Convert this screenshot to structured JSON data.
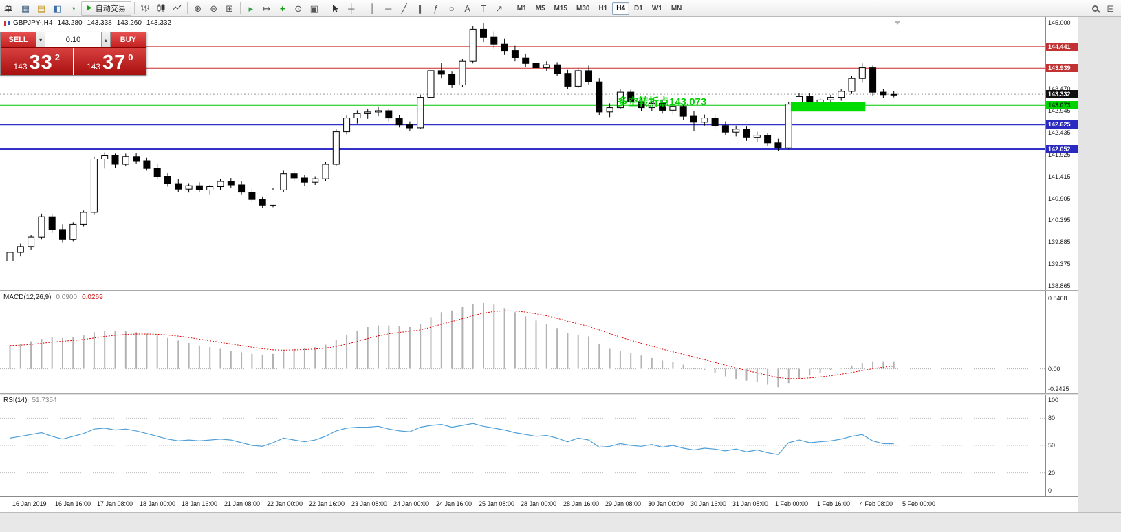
{
  "colors": {
    "accent_red_line": "#cc2a2a",
    "blue_line": "#3232c8",
    "green_line": "#00c800",
    "zone_green": "#00dc00",
    "annotation_green": "#00d000",
    "macd_bar": "#b2b2b2",
    "macd_signal": "#e00000",
    "rsi_line": "#4f9fd8",
    "trade_red": "#c21818",
    "current_label_bg": "#111111"
  },
  "toolbar": {
    "menu_text": "单",
    "auto_trading_label": "自动交易",
    "active_timeframe": "H4",
    "timeframes": [
      "M1",
      "M5",
      "M15",
      "M30",
      "H1",
      "H4",
      "D1",
      "W1",
      "MN"
    ],
    "icon_glyphs": {
      "play": "▶",
      "new_chart": "▦",
      "profiles": "▤",
      "market_watch": "◧",
      "navigator": "◔",
      "zoom_in": "⊕",
      "zoom_out": "⊖",
      "tile_windows": "⊞",
      "auto_scroll": "▸",
      "chart_shift": "↦",
      "indicators": "+",
      "periods": "⊙",
      "templates": "▣",
      "crosshair": "┼",
      "vertical_line": "│",
      "horizontal_line": "─",
      "trendline": "╱",
      "channel": "∥",
      "fibonacci": "ƒ",
      "shapes": "○",
      "text": "A",
      "label": "T",
      "arrows": "↗",
      "layout": "⊟",
      "lot_down": "▾",
      "lot_up": "▴"
    }
  },
  "chart_header": {
    "symbol": "GBPJPY-,H4",
    "open": "143.280",
    "high": "143.338",
    "low": "143.260",
    "close": "143.332"
  },
  "trade_panel": {
    "sell_label": "SELL",
    "buy_label": "BUY",
    "lot": "0.10",
    "sell_price_main": "143",
    "sell_price_pips": "33",
    "sell_price_frac": "2",
    "buy_price_main": "143",
    "buy_price_pips": "37",
    "buy_price_frac": "0"
  },
  "annotation": {
    "text": "多空转折点143.073"
  },
  "price_axis_ticks": [
    "145.000",
    "143.470",
    "142.945",
    "142.435",
    "141.925",
    "141.415",
    "140.905",
    "140.395",
    "139.885",
    "139.375",
    "138.865"
  ],
  "price_lines": [
    {
      "label": "144.441",
      "price": 144.441,
      "line_color": "#cc2a2a",
      "line_width": 1,
      "label_bg": "#c23232",
      "label_fg": "#ffffff",
      "current": false
    },
    {
      "label": "143.939",
      "price": 143.939,
      "line_color": "#cc2a2a",
      "line_width": 1,
      "label_bg": "#c23232",
      "label_fg": "#ffffff",
      "current": false
    },
    {
      "label": "143.332",
      "price": 143.332,
      "line_color": null,
      "line_width": 1,
      "label_bg": "#111111",
      "label_fg": "#ffffff",
      "current": true
    },
    {
      "label": "143.073",
      "price": 143.073,
      "line_color": "#00c800",
      "line_width": 1,
      "label_bg": "#00d300",
      "label_fg": "#00320a",
      "current": false
    },
    {
      "label": "142.625",
      "price": 142.625,
      "line_color": "#3232c8",
      "line_width": 2,
      "label_bg": "#2a2ac0",
      "label_fg": "#ffffff",
      "current": false
    },
    {
      "label": "142.052",
      "price": 142.052,
      "line_color": "#3232c8",
      "line_width": 2,
      "label_bg": "#2a2ac0",
      "label_fg": "#ffffff",
      "current": false
    }
  ],
  "green_zone": {
    "start_index": 74.5,
    "end_index": 81,
    "price_top": 143.15,
    "price_bottom": 142.93
  },
  "chart_data": [
    {
      "type": "candlestick",
      "name": "GBPJPY- H4",
      "ylim": [
        138.865,
        145.0
      ],
      "x_tick_labels": [
        "16 Jan 2019",
        "16 Jan 16:00",
        "17 Jan 08:00",
        "18 Jan 00:00",
        "18 Jan 16:00",
        "21 Jan 08:00",
        "22 Jan 00:00",
        "22 Jan 16:00",
        "23 Jan 08:00",
        "24 Jan 00:00",
        "24 Jan 16:00",
        "25 Jan 08:00",
        "28 Jan 00:00",
        "28 Jan 16:00",
        "29 Jan 08:00",
        "30 Jan 00:00",
        "30 Jan 16:00",
        "31 Jan 08:00",
        "1 Feb 00:00",
        "1 Feb 16:00",
        "4 Feb 08:00",
        "5 Feb 00:00"
      ],
      "ohlc": [
        [
          139.45,
          139.75,
          139.3,
          139.65
        ],
        [
          139.65,
          139.85,
          139.55,
          139.78
        ],
        [
          139.78,
          140.05,
          139.7,
          140.0
        ],
        [
          140.0,
          140.55,
          139.95,
          140.48
        ],
        [
          140.48,
          140.55,
          140.1,
          140.18
        ],
        [
          140.18,
          140.3,
          139.88,
          139.95
        ],
        [
          139.95,
          140.35,
          139.9,
          140.3
        ],
        [
          140.3,
          140.62,
          140.25,
          140.58
        ],
        [
          140.58,
          141.88,
          140.52,
          141.82
        ],
        [
          141.82,
          141.98,
          141.6,
          141.9
        ],
        [
          141.9,
          141.95,
          141.62,
          141.7
        ],
        [
          141.7,
          141.95,
          141.65,
          141.88
        ],
        [
          141.88,
          141.96,
          141.7,
          141.78
        ],
        [
          141.78,
          141.85,
          141.55,
          141.6
        ],
        [
          141.6,
          141.7,
          141.35,
          141.42
        ],
        [
          141.42,
          141.5,
          141.18,
          141.25
        ],
        [
          141.25,
          141.35,
          141.05,
          141.12
        ],
        [
          141.12,
          141.26,
          141.04,
          141.2
        ],
        [
          141.2,
          141.28,
          141.05,
          141.1
        ],
        [
          141.1,
          141.22,
          141.0,
          141.18
        ],
        [
          141.18,
          141.35,
          141.1,
          141.3
        ],
        [
          141.3,
          141.38,
          141.15,
          141.22
        ],
        [
          141.22,
          141.3,
          141.0,
          141.05
        ],
        [
          141.05,
          141.12,
          140.82,
          140.88
        ],
        [
          140.88,
          140.95,
          140.68,
          140.75
        ],
        [
          140.75,
          141.15,
          140.7,
          141.1
        ],
        [
          141.1,
          141.55,
          141.05,
          141.48
        ],
        [
          141.48,
          141.55,
          141.3,
          141.38
        ],
        [
          141.38,
          141.45,
          141.2,
          141.28
        ],
        [
          141.28,
          141.42,
          141.22,
          141.36
        ],
        [
          141.36,
          141.75,
          141.3,
          141.7
        ],
        [
          141.7,
          142.52,
          141.65,
          142.46
        ],
        [
          142.46,
          142.85,
          142.4,
          142.78
        ],
        [
          142.78,
          142.96,
          142.65,
          142.88
        ],
        [
          142.88,
          143.0,
          142.76,
          142.92
        ],
        [
          142.92,
          143.05,
          142.82,
          142.95
        ],
        [
          142.95,
          143.0,
          142.7,
          142.78
        ],
        [
          142.78,
          142.85,
          142.56,
          142.62
        ],
        [
          142.62,
          142.7,
          142.48,
          142.55
        ],
        [
          142.55,
          143.32,
          142.52,
          143.26
        ],
        [
          143.26,
          143.96,
          143.2,
          143.88
        ],
        [
          143.88,
          144.06,
          143.7,
          143.8
        ],
        [
          143.8,
          143.86,
          143.48,
          143.55
        ],
        [
          143.55,
          144.15,
          143.5,
          144.1
        ],
        [
          144.1,
          144.92,
          144.05,
          144.85
        ],
        [
          144.85,
          145.0,
          144.55,
          144.66
        ],
        [
          144.66,
          144.8,
          144.4,
          144.5
        ],
        [
          144.5,
          144.62,
          144.25,
          144.35
        ],
        [
          144.35,
          144.46,
          144.1,
          144.18
        ],
        [
          144.18,
          144.28,
          143.96,
          144.05
        ],
        [
          144.05,
          144.16,
          143.86,
          143.95
        ],
        [
          143.95,
          144.1,
          143.88,
          144.02
        ],
        [
          144.02,
          144.08,
          143.76,
          143.82
        ],
        [
          143.82,
          143.9,
          143.45,
          143.52
        ],
        [
          143.52,
          143.95,
          143.48,
          143.88
        ],
        [
          143.88,
          144.0,
          143.56,
          143.62
        ],
        [
          143.62,
          143.7,
          142.85,
          142.92
        ],
        [
          142.92,
          143.12,
          142.8,
          143.02
        ],
        [
          143.02,
          143.46,
          142.98,
          143.38
        ],
        [
          143.38,
          143.44,
          143.1,
          143.16
        ],
        [
          143.16,
          143.26,
          142.95,
          143.02
        ],
        [
          143.02,
          143.18,
          142.94,
          143.12
        ],
        [
          143.12,
          143.2,
          142.88,
          142.96
        ],
        [
          142.96,
          143.1,
          142.86,
          143.05
        ],
        [
          143.05,
          143.1,
          142.74,
          142.82
        ],
        [
          142.82,
          142.95,
          142.48,
          142.68
        ],
        [
          142.68,
          142.86,
          142.6,
          142.78
        ],
        [
          142.78,
          142.85,
          142.54,
          142.6
        ],
        [
          142.6,
          142.7,
          142.38,
          142.45
        ],
        [
          142.45,
          142.6,
          142.35,
          142.52
        ],
        [
          142.52,
          142.58,
          142.25,
          142.32
        ],
        [
          142.32,
          142.46,
          142.22,
          142.38
        ],
        [
          142.38,
          142.42,
          142.12,
          142.2
        ],
        [
          142.2,
          142.3,
          142.02,
          142.08
        ],
        [
          142.08,
          143.16,
          142.05,
          143.1
        ],
        [
          143.1,
          143.36,
          143.0,
          143.28
        ],
        [
          143.28,
          143.35,
          143.04,
          143.12
        ],
        [
          143.12,
          143.26,
          143.02,
          143.2
        ],
        [
          143.2,
          143.32,
          143.08,
          143.26
        ],
        [
          143.26,
          143.46,
          143.18,
          143.4
        ],
        [
          143.4,
          143.76,
          143.34,
          143.7
        ],
        [
          143.7,
          144.05,
          143.6,
          143.95
        ],
        [
          143.95,
          144.0,
          143.3,
          143.38
        ],
        [
          143.38,
          143.46,
          143.25,
          143.32
        ],
        [
          143.32,
          143.4,
          143.26,
          143.33
        ]
      ]
    },
    {
      "type": "bar",
      "name": "MACD(12,26,9)",
      "value_main": "0.0900",
      "value_signal": "0.0269",
      "signal_period": 9,
      "ylim": [
        -0.2425,
        0.8468
      ],
      "axis_ticks": [
        "0.8468",
        "0.00",
        "-0.2425"
      ],
      "values": [
        0.28,
        0.3,
        0.33,
        0.36,
        0.38,
        0.37,
        0.38,
        0.4,
        0.44,
        0.46,
        0.46,
        0.45,
        0.44,
        0.42,
        0.4,
        0.37,
        0.34,
        0.31,
        0.28,
        0.26,
        0.24,
        0.22,
        0.2,
        0.18,
        0.17,
        0.18,
        0.21,
        0.24,
        0.25,
        0.26,
        0.29,
        0.35,
        0.41,
        0.46,
        0.5,
        0.52,
        0.52,
        0.51,
        0.5,
        0.54,
        0.62,
        0.68,
        0.7,
        0.74,
        0.78,
        0.79,
        0.77,
        0.73,
        0.68,
        0.63,
        0.58,
        0.54,
        0.49,
        0.43,
        0.41,
        0.39,
        0.3,
        0.24,
        0.22,
        0.19,
        0.16,
        0.13,
        0.1,
        0.08,
        0.05,
        0.01,
        -0.02,
        -0.05,
        -0.09,
        -0.12,
        -0.14,
        -0.16,
        -0.19,
        -0.22,
        -0.17,
        -0.11,
        -0.08,
        -0.05,
        -0.02,
        0.01,
        0.04,
        0.07,
        0.09,
        0.09,
        0.09
      ]
    },
    {
      "type": "line",
      "name": "RSI(14)",
      "value": "51.7354",
      "ylim": [
        0,
        100
      ],
      "levels": [
        80,
        50,
        20
      ],
      "axis_ticks": [
        "100",
        "80",
        "50",
        "20",
        "0"
      ],
      "values": [
        58,
        60,
        62,
        64,
        60,
        57,
        60,
        63,
        68,
        69,
        67,
        68,
        66,
        63,
        60,
        57,
        55,
        56,
        55,
        56,
        57,
        56,
        53,
        50,
        49,
        53,
        58,
        56,
        54,
        56,
        60,
        66,
        69,
        70,
        70,
        71,
        68,
        66,
        65,
        70,
        72,
        73,
        70,
        72,
        74,
        71,
        69,
        67,
        64,
        62,
        60,
        61,
        58,
        54,
        58,
        56,
        48,
        49,
        52,
        50,
        49,
        51,
        48,
        50,
        47,
        45,
        47,
        46,
        44,
        46,
        43,
        45,
        42,
        40,
        53,
        56,
        53,
        54,
        55,
        57,
        60,
        62,
        55,
        52,
        51.74
      ]
    }
  ]
}
